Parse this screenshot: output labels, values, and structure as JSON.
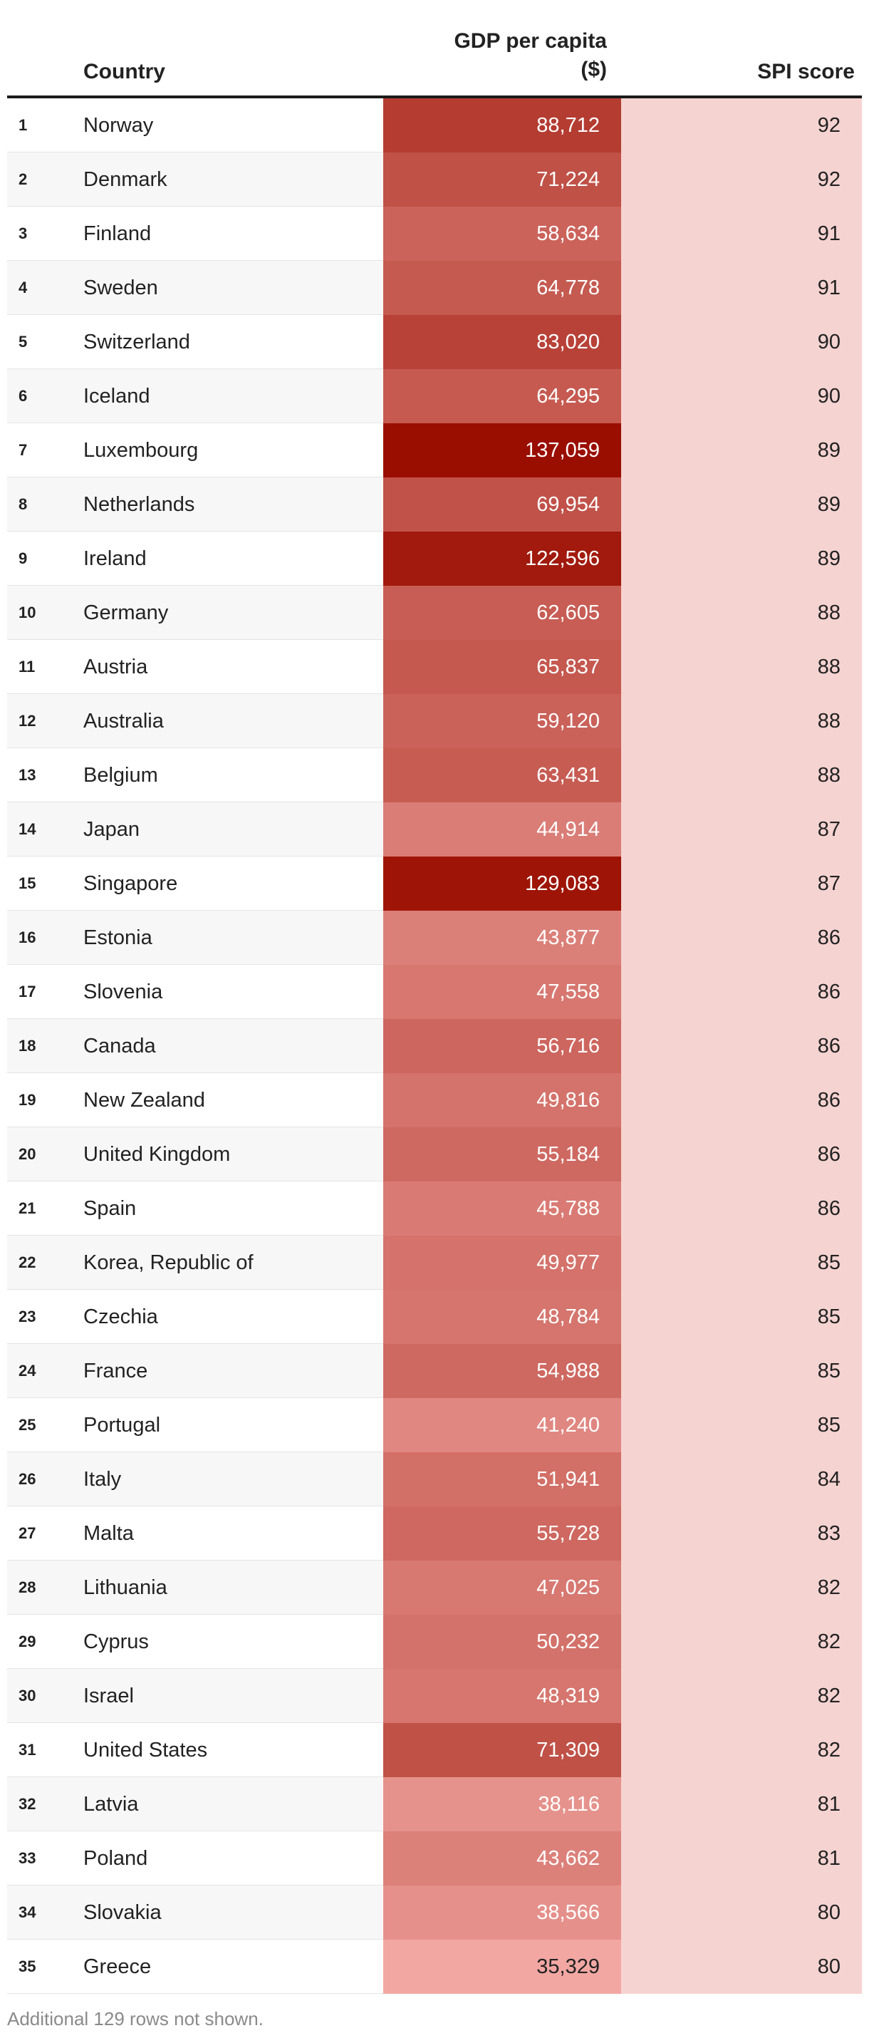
{
  "header": {
    "country": "Country",
    "gdp_line1": "GDP per capita",
    "gdp_line2": "($)",
    "spi": "SPI score"
  },
  "colors": {
    "gdp_scale_low": "#f2a7a3",
    "gdp_scale_high": "#9a0e00",
    "spi_fill": "#f5d3d1"
  },
  "rows": [
    {
      "rank": "1",
      "country": "Norway",
      "gdp": "88,712",
      "spi": "92"
    },
    {
      "rank": "2",
      "country": "Denmark",
      "gdp": "71,224",
      "spi": "92"
    },
    {
      "rank": "3",
      "country": "Finland",
      "gdp": "58,634",
      "spi": "91"
    },
    {
      "rank": "4",
      "country": "Sweden",
      "gdp": "64,778",
      "spi": "91"
    },
    {
      "rank": "5",
      "country": "Switzerland",
      "gdp": "83,020",
      "spi": "90"
    },
    {
      "rank": "6",
      "country": "Iceland",
      "gdp": "64,295",
      "spi": "90"
    },
    {
      "rank": "7",
      "country": "Luxembourg",
      "gdp": "137,059",
      "spi": "89"
    },
    {
      "rank": "8",
      "country": "Netherlands",
      "gdp": "69,954",
      "spi": "89"
    },
    {
      "rank": "9",
      "country": "Ireland",
      "gdp": "122,596",
      "spi": "89"
    },
    {
      "rank": "10",
      "country": "Germany",
      "gdp": "62,605",
      "spi": "88"
    },
    {
      "rank": "11",
      "country": "Austria",
      "gdp": "65,837",
      "spi": "88"
    },
    {
      "rank": "12",
      "country": "Australia",
      "gdp": "59,120",
      "spi": "88"
    },
    {
      "rank": "13",
      "country": "Belgium",
      "gdp": "63,431",
      "spi": "88"
    },
    {
      "rank": "14",
      "country": "Japan",
      "gdp": "44,914",
      "spi": "87"
    },
    {
      "rank": "15",
      "country": "Singapore",
      "gdp": "129,083",
      "spi": "87"
    },
    {
      "rank": "16",
      "country": "Estonia",
      "gdp": "43,877",
      "spi": "86"
    },
    {
      "rank": "17",
      "country": "Slovenia",
      "gdp": "47,558",
      "spi": "86"
    },
    {
      "rank": "18",
      "country": "Canada",
      "gdp": "56,716",
      "spi": "86"
    },
    {
      "rank": "19",
      "country": "New Zealand",
      "gdp": "49,816",
      "spi": "86"
    },
    {
      "rank": "20",
      "country": "United Kingdom",
      "gdp": "55,184",
      "spi": "86"
    },
    {
      "rank": "21",
      "country": "Spain",
      "gdp": "45,788",
      "spi": "86"
    },
    {
      "rank": "22",
      "country": "Korea, Republic of",
      "gdp": "49,977",
      "spi": "85"
    },
    {
      "rank": "23",
      "country": "Czechia",
      "gdp": "48,784",
      "spi": "85"
    },
    {
      "rank": "24",
      "country": "France",
      "gdp": "54,988",
      "spi": "85"
    },
    {
      "rank": "25",
      "country": "Portugal",
      "gdp": "41,240",
      "spi": "85"
    },
    {
      "rank": "26",
      "country": "Italy",
      "gdp": "51,941",
      "spi": "84"
    },
    {
      "rank": "27",
      "country": "Malta",
      "gdp": "55,728",
      "spi": "83"
    },
    {
      "rank": "28",
      "country": "Lithuania",
      "gdp": "47,025",
      "spi": "82"
    },
    {
      "rank": "29",
      "country": "Cyprus",
      "gdp": "50,232",
      "spi": "82"
    },
    {
      "rank": "30",
      "country": "Israel",
      "gdp": "48,319",
      "spi": "82"
    },
    {
      "rank": "31",
      "country": "United States",
      "gdp": "71,309",
      "spi": "82"
    },
    {
      "rank": "32",
      "country": "Latvia",
      "gdp": "38,116",
      "spi": "81"
    },
    {
      "rank": "33",
      "country": "Poland",
      "gdp": "43,662",
      "spi": "81"
    },
    {
      "rank": "34",
      "country": "Slovakia",
      "gdp": "38,566",
      "spi": "80"
    },
    {
      "rank": "35",
      "country": "Greece",
      "gdp": "35,329",
      "spi": "80"
    }
  ],
  "footnote": "Additional 129 rows not shown."
}
